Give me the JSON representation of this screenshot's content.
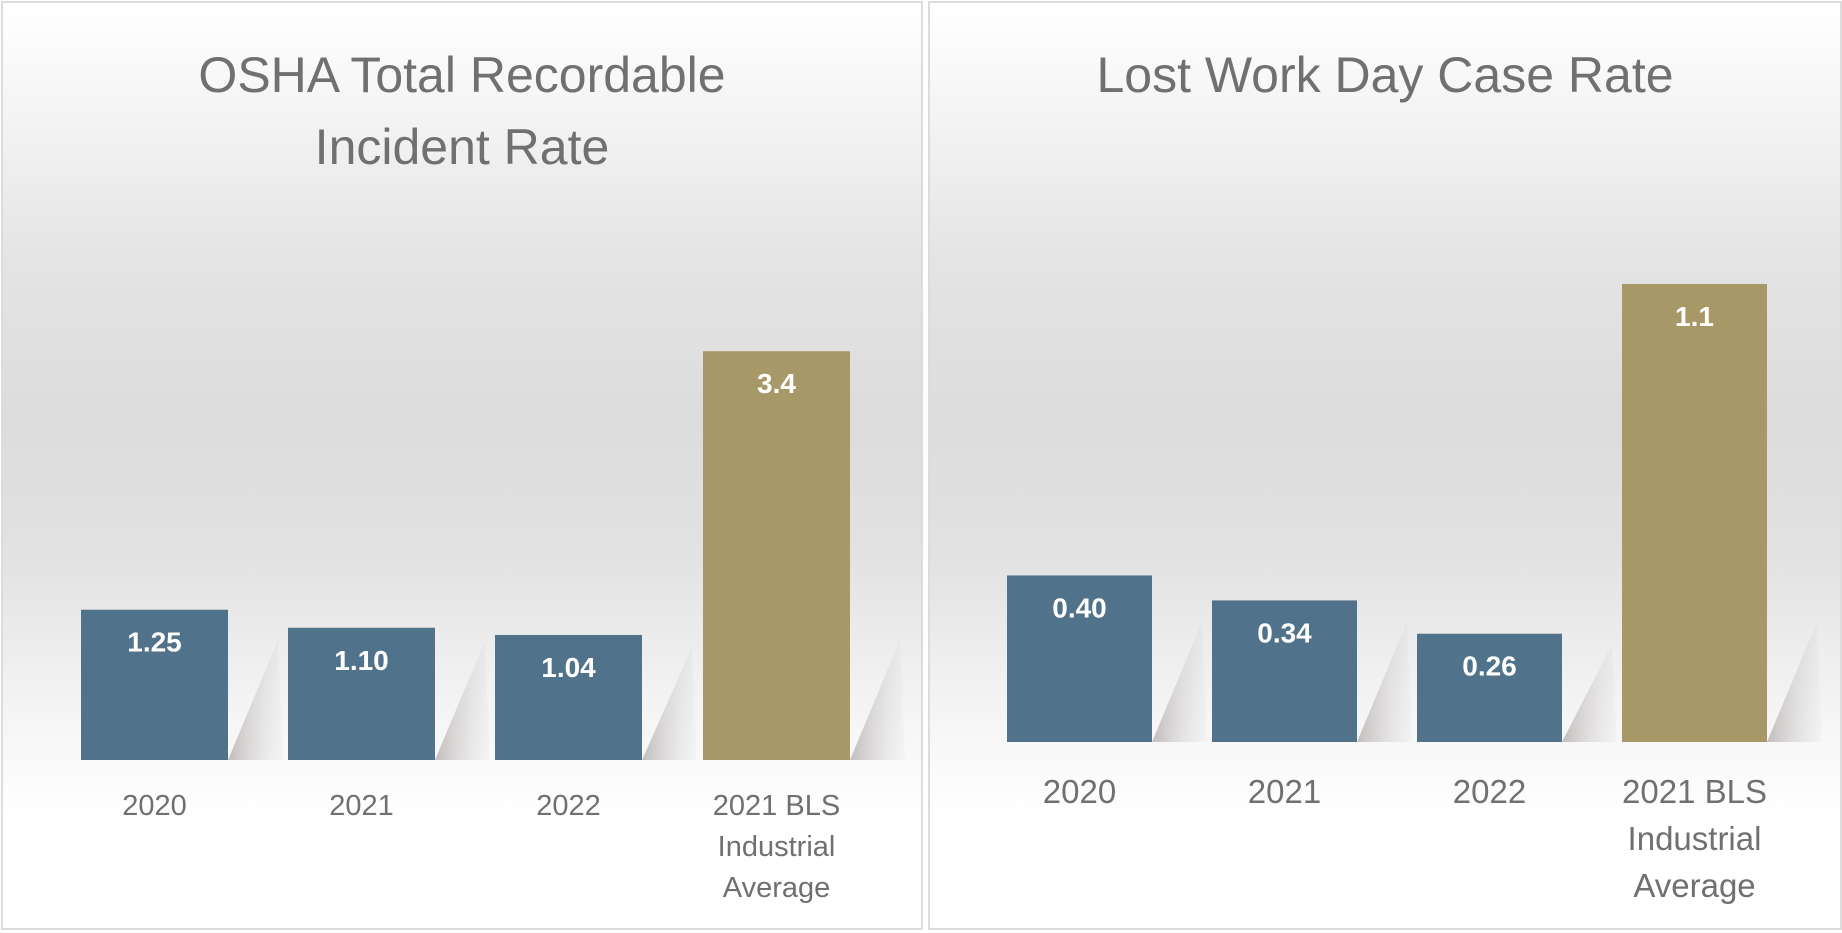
{
  "chart_data": [
    {
      "type": "bar",
      "title": "OSHA Total Recordable Incident Rate",
      "categories": [
        "2020",
        "2021",
        "2022",
        "2021 BLS Industrial Average"
      ],
      "category_lines": [
        [
          "2020"
        ],
        [
          "2021"
        ],
        [
          "2022"
        ],
        [
          "2021 BLS",
          "Industrial",
          "Average"
        ]
      ],
      "values": [
        1.25,
        1.1,
        1.04,
        3.4
      ],
      "value_labels": [
        "1.25",
        "1.10",
        "1.04",
        "3.4"
      ],
      "bar_colors": [
        "#50728a",
        "#50728a",
        "#50728a",
        "#a69967"
      ],
      "xlabel": "",
      "ylabel": "",
      "ylim": [
        0,
        4.45
      ],
      "grid": false,
      "legend": "none"
    },
    {
      "type": "bar",
      "title": "Lost Work Day Case Rate",
      "categories": [
        "2020",
        "2021",
        "2022",
        "2021 BLS Industrial Average"
      ],
      "category_lines": [
        [
          "2020"
        ],
        [
          "2021"
        ],
        [
          "2022"
        ],
        [
          "2021 BLS",
          "Industrial",
          "Average"
        ]
      ],
      "values": [
        0.4,
        0.34,
        0.26,
        1.1
      ],
      "value_labels": [
        "0.40",
        "0.34",
        "0.26",
        "1.1"
      ],
      "bar_colors": [
        "#50728a",
        "#50728a",
        "#50728a",
        "#a69967"
      ],
      "xlabel": "",
      "ylabel": "",
      "ylim": [
        0,
        1.28
      ],
      "grid": false,
      "legend": "none"
    }
  ]
}
